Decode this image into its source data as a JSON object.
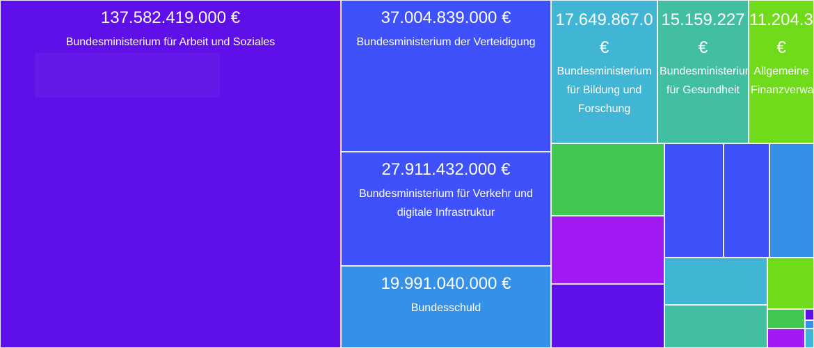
{
  "chart_data": {
    "type": "treemap",
    "value_suffix": " €",
    "items": [
      {
        "label": "Bundesministerium für Arbeit und Soziales",
        "value_text": "137.582.419.000 €",
        "value": 137582419000,
        "color": "#5f0fe8"
      },
      {
        "label": "Bundesministerium der Verteidigung",
        "value_text": "37.004.839.000 €",
        "value": 37004839000,
        "color": "#3f51fb"
      },
      {
        "label": "Bundesministerium für Verkehr und digitale Infrastruktur",
        "value_text": "27.911.432.000 €",
        "value": 27911432000,
        "color": "#3f51fb"
      },
      {
        "label": "Bundesschuld",
        "value_text": "19.991.040.000 €",
        "value": 19991040000,
        "color": "#3590e8"
      },
      {
        "label": "Bundesministerium für Bildung und Forschung",
        "value_text": "17.649.867.0",
        "value": 17649867000,
        "color": "#41b5d4",
        "value_tail": "€"
      },
      {
        "label": "Bundesministerium für Gesundheit",
        "value_text": "15.159.227",
        "value": 15159227000,
        "color": "#42bfa2",
        "value_tail": "€"
      },
      {
        "label": "Allgemeine Finanzverwa",
        "value_text": "11.204.3",
        "value": 11204300000,
        "color": "#6fdb1a",
        "value_tail": "€"
      },
      {
        "label": "",
        "value_text": "",
        "color": "#41c74f"
      },
      {
        "label": "",
        "value_text": "",
        "color": "#a11af5"
      },
      {
        "label": "",
        "value_text": "",
        "color": "#5f0fe8"
      },
      {
        "label": "",
        "value_text": "",
        "color": "#3f51fb"
      },
      {
        "label": "",
        "value_text": "",
        "color": "#3f51fb"
      },
      {
        "label": "",
        "value_text": "",
        "color": "#3590e8"
      },
      {
        "label": "",
        "value_text": "",
        "color": "#41b5d4"
      },
      {
        "label": "",
        "value_text": "",
        "color": "#42bfa2"
      },
      {
        "label": "",
        "value_text": "",
        "color": "#6fdb1a"
      },
      {
        "label": "",
        "value_text": "",
        "color": "#41c74f"
      },
      {
        "label": "",
        "value_text": "",
        "color": "#a11af5"
      },
      {
        "label": "",
        "value_text": "",
        "color": "#5f0fe8"
      },
      {
        "label": "",
        "value_text": "",
        "color": "#3590e8"
      },
      {
        "label": "",
        "value_text": "",
        "color": "#41b5d4"
      }
    ]
  }
}
